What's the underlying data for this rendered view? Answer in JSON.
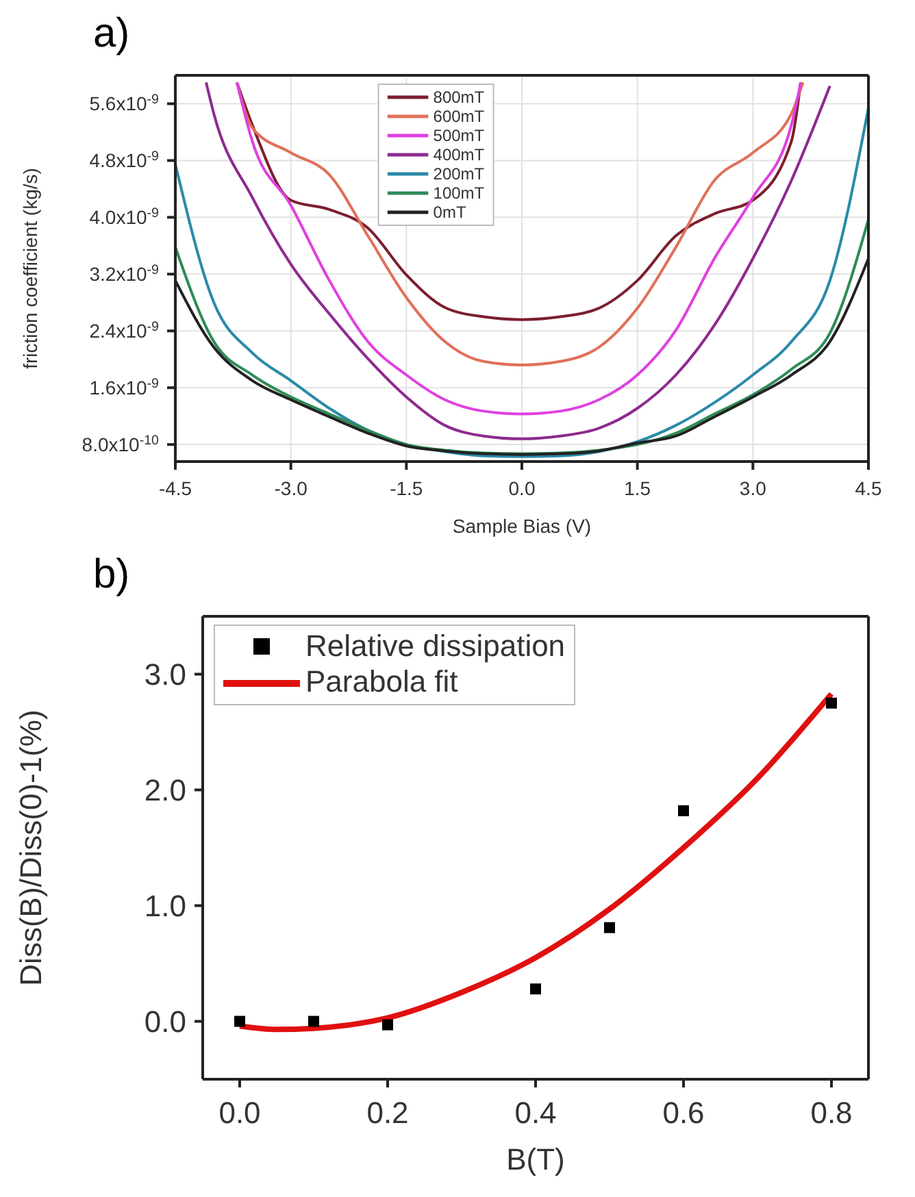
{
  "chart_data": [
    {
      "type": "line",
      "title": "a)",
      "xlabel": "Sample Bias (V)",
      "ylabel": "friction coefficient (kg/s)",
      "xlim": [
        -4.5,
        4.5
      ],
      "xticks": [
        {
          "value": -4.5,
          "label": "-4.5"
        },
        {
          "value": -3,
          "label": "-3.0"
        },
        {
          "value": -1.5,
          "label": "-1.5"
        },
        {
          "value": 0,
          "label": "0.0"
        },
        {
          "value": 1.5,
          "label": "1.5"
        },
        {
          "value": 3,
          "label": "3.0"
        },
        {
          "value": 4.5,
          "label": "4.5"
        }
      ],
      "ylim": [
        5.6e-10,
        6e-09
      ],
      "yticks": [
        {
          "value": 8e-10,
          "label": "8.0x10$^{-10}$"
        },
        {
          "value": 1.6e-09,
          "label": "1.6x10$^{-9}$"
        },
        {
          "value": 2.4e-09,
          "label": "2.4x10$^{-9}$"
        },
        {
          "value": 3.2e-09,
          "label": "3.2x10$^{-9}$"
        },
        {
          "value": 4e-09,
          "label": "4.0x10$^{-9}$"
        },
        {
          "value": 4.8e-09,
          "label": "4.8x10$^{-9}$"
        },
        {
          "value": 5.6e-09,
          "label": "5.6x10$^{-9}$"
        }
      ],
      "grid": true,
      "legend": "top",
      "marker": "none",
      "line_style": "solid",
      "series": [
        {
          "name": "800mT",
          "color": "#7b1f2e",
          "x": [
            -3.7,
            -3.5,
            -3,
            -2.5,
            -2,
            -1.5,
            -1,
            -0.5,
            0,
            0.5,
            1,
            1.5,
            2,
            2.5,
            3,
            3.5,
            3.62
          ],
          "values": [
            5.9e-09,
            5.3e-09,
            4.24e-09,
            4.11e-09,
            3.85e-09,
            3.19e-09,
            2.73e-09,
            2.6e-09,
            2.56e-09,
            2.6e-09,
            2.72e-09,
            3.11e-09,
            3.74e-09,
            4.05e-09,
            4.24e-09,
            5.07e-09,
            5.9e-09
          ]
        },
        {
          "name": "600mT",
          "color": "#e0705a",
          "x": [
            -3.7,
            -3.5,
            -3,
            -2.5,
            -2,
            -1.5,
            -1,
            -0.5,
            0,
            0.5,
            1,
            1.5,
            2,
            2.5,
            3,
            3.5,
            3.65
          ],
          "values": [
            5.9e-09,
            5.26e-09,
            4.91e-09,
            4.6e-09,
            3.74e-09,
            2.87e-09,
            2.25e-09,
            1.97e-09,
            1.92e-09,
            1.97e-09,
            2.17e-09,
            2.72e-09,
            3.58e-09,
            4.52e-09,
            4.91e-09,
            5.46e-09,
            5.9e-09
          ]
        },
        {
          "name": "500mT",
          "color": "#e040e0",
          "x": [
            -3.7,
            -3.5,
            -3,
            -2.5,
            -2,
            -1.5,
            -1,
            -0.5,
            0,
            0.5,
            1,
            1.5,
            2,
            2.5,
            3,
            3.5,
            3.62
          ],
          "values": [
            5.9e-09,
            5.07e-09,
            4.17e-09,
            3.11e-09,
            2.25e-09,
            1.78e-09,
            1.43e-09,
            1.27e-09,
            1.23e-09,
            1.27e-09,
            1.43e-09,
            1.78e-09,
            2.41e-09,
            3.42e-09,
            4.28e-09,
            5.3e-09,
            5.9e-09
          ]
        },
        {
          "name": "400mT",
          "color": "#8e2a8e",
          "x": [
            -4.1,
            -4,
            -3.5,
            -3,
            -2.5,
            -2,
            -1.5,
            -1,
            -0.5,
            0,
            0.5,
            1,
            1.5,
            2,
            2.5,
            3,
            3.5,
            4
          ],
          "values": [
            5.9e-09,
            5.46e-09,
            4.28e-09,
            3.34e-09,
            2.64e-09,
            2.01e-09,
            1.47e-09,
            1.07e-09,
            9.2e-10,
            8.8e-10,
            9.2e-10,
            1.03e-09,
            1.31e-09,
            1.78e-09,
            2.48e-09,
            3.42e-09,
            4.52e-09,
            5.85e-09
          ]
        },
        {
          "name": "200mT",
          "color": "#2a8aa8",
          "x": [
            -4.5,
            -4,
            -3.5,
            -3,
            -2.5,
            -2,
            -1.5,
            -1,
            -0.5,
            0,
            0.5,
            1,
            1.5,
            2,
            2.5,
            3,
            3.5,
            4,
            4.5
          ],
          "values": [
            4.75e-09,
            2.8e-09,
            2.09e-09,
            1.7e-09,
            1.31e-09,
            1e-09,
            8e-10,
            7e-10,
            6.4e-10,
            6.3e-10,
            6.4e-10,
            7e-10,
            8.4e-10,
            1.07e-09,
            1.39e-09,
            1.78e-09,
            2.25e-09,
            3.11e-09,
            5.54e-09
          ]
        },
        {
          "name": "100mT",
          "color": "#2e8b57",
          "x": [
            -4.5,
            -4,
            -3.5,
            -3,
            -2.5,
            -2,
            -1.5,
            -1,
            -0.5,
            0,
            0.5,
            1,
            1.5,
            2,
            2.5,
            3,
            3.5,
            4,
            4.5
          ],
          "values": [
            3.58e-09,
            2.25e-09,
            1.78e-09,
            1.47e-09,
            1.23e-09,
            1e-09,
            8e-10,
            7.2e-10,
            6.8e-10,
            6.7e-10,
            6.8e-10,
            7.2e-10,
            8e-10,
            9.6e-10,
            1.23e-09,
            1.5e-09,
            1.86e-09,
            2.37e-09,
            3.97e-09
          ]
        },
        {
          "name": "0mT",
          "color": "#222222",
          "x": [
            -4.5,
            -4,
            -3.5,
            -3,
            -2.5,
            -2,
            -1.5,
            -1,
            -0.5,
            0,
            0.5,
            1,
            1.5,
            2,
            2.5,
            3,
            3.5,
            4,
            4.5
          ],
          "values": [
            3.11e-09,
            2.17e-09,
            1.7e-09,
            1.43e-09,
            1.19e-09,
            9.6e-10,
            7.8e-10,
            7.1e-10,
            6.7e-10,
            6.6e-10,
            6.7e-10,
            7.1e-10,
            8.2e-10,
            9.2e-10,
            1.19e-09,
            1.47e-09,
            1.78e-09,
            2.25e-09,
            3.42e-09
          ]
        }
      ]
    },
    {
      "type": "scatter",
      "title": "b)",
      "xlabel": "B(T)",
      "ylabel": "Diss(B)/Diss(0)-1(%)",
      "xlim": [
        -0.05,
        0.85
      ],
      "xticks": [
        {
          "value": 0,
          "label": "0.0"
        },
        {
          "value": 0.2,
          "label": "0.2"
        },
        {
          "value": 0.4,
          "label": "0.4"
        },
        {
          "value": 0.6,
          "label": "0.6"
        },
        {
          "value": 0.8,
          "label": "0.8"
        }
      ],
      "ylim": [
        -0.5,
        3.5
      ],
      "yticks": [
        {
          "value": 0,
          "label": "0.0"
        },
        {
          "value": 1,
          "label": "1.0"
        },
        {
          "value": 2,
          "label": "2.0"
        },
        {
          "value": 3,
          "label": "3.0"
        }
      ],
      "legend": "top left",
      "series": [
        {
          "name": "Relative dissipation",
          "marker": "square",
          "color": "#000000",
          "x": [
            0,
            0.1,
            0.2,
            0.4,
            0.5,
            0.6,
            0.8
          ],
          "values": [
            0.0,
            0.0,
            -0.03,
            0.28,
            0.81,
            1.82,
            2.75
          ]
        },
        {
          "name": "Parabola fit",
          "type": "line",
          "color": "#e01010",
          "x": [
            0,
            0.05,
            0.1,
            0.2,
            0.3,
            0.4,
            0.5,
            0.6,
            0.7,
            0.8
          ],
          "values": [
            -0.04,
            -0.07,
            -0.06,
            0.03,
            0.25,
            0.55,
            0.97,
            1.5,
            2.1,
            2.83
          ]
        }
      ]
    }
  ]
}
